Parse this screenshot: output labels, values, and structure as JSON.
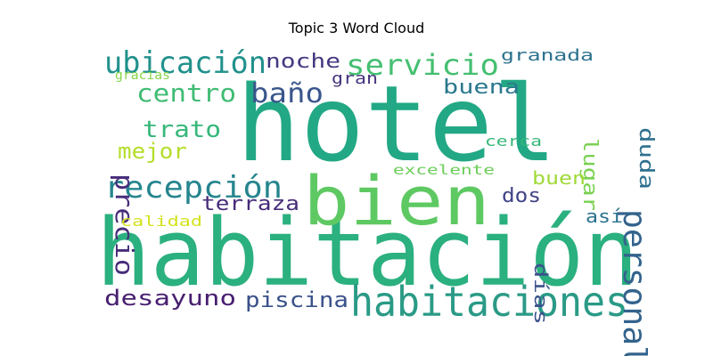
{
  "chart_data": {
    "type": "wordcloud",
    "title": "Topic 3 Word Cloud",
    "words": [
      {
        "text": "hotel",
        "color": "#22a884"
      },
      {
        "text": "habitación",
        "color": "#2bb07f"
      },
      {
        "text": "bien",
        "color": "#5ec962"
      },
      {
        "text": "habitaciones",
        "color": "#2a9a86"
      },
      {
        "text": "recepción",
        "color": "#25858e"
      },
      {
        "text": "personal",
        "color": "#33638d"
      },
      {
        "text": "ubicación",
        "color": "#21918c"
      },
      {
        "text": "servicio",
        "color": "#44bf70"
      },
      {
        "text": "centro",
        "color": "#3fbc73"
      },
      {
        "text": "baño",
        "color": "#39568c"
      },
      {
        "text": "precio",
        "color": "#472d7b"
      },
      {
        "text": "trato",
        "color": "#35b779"
      },
      {
        "text": "mejor",
        "color": "#b5de2b"
      },
      {
        "text": "noche",
        "color": "#453781"
      },
      {
        "text": "buena",
        "color": "#2a788e"
      },
      {
        "text": "lugar",
        "color": "#7ad151"
      },
      {
        "text": "duda",
        "color": "#2d708e"
      },
      {
        "text": "desayuno",
        "color": "#481f70"
      },
      {
        "text": "piscina",
        "color": "#3b528b"
      },
      {
        "text": "terraza",
        "color": "#472c7a"
      },
      {
        "text": "dos",
        "color": "#414487"
      },
      {
        "text": "buen",
        "color": "#a0da39"
      },
      {
        "text": "así",
        "color": "#2c728e"
      },
      {
        "text": "días",
        "color": "#3b528b"
      },
      {
        "text": "granada",
        "color": "#2c728e"
      },
      {
        "text": "gran",
        "color": "#46337e"
      },
      {
        "text": "gracias",
        "color": "#86d549"
      },
      {
        "text": "calidad",
        "color": "#d2e21b"
      },
      {
        "text": "excelente",
        "color": "#6ccd5a"
      },
      {
        "text": "cerca",
        "color": "#35b779"
      }
    ]
  }
}
